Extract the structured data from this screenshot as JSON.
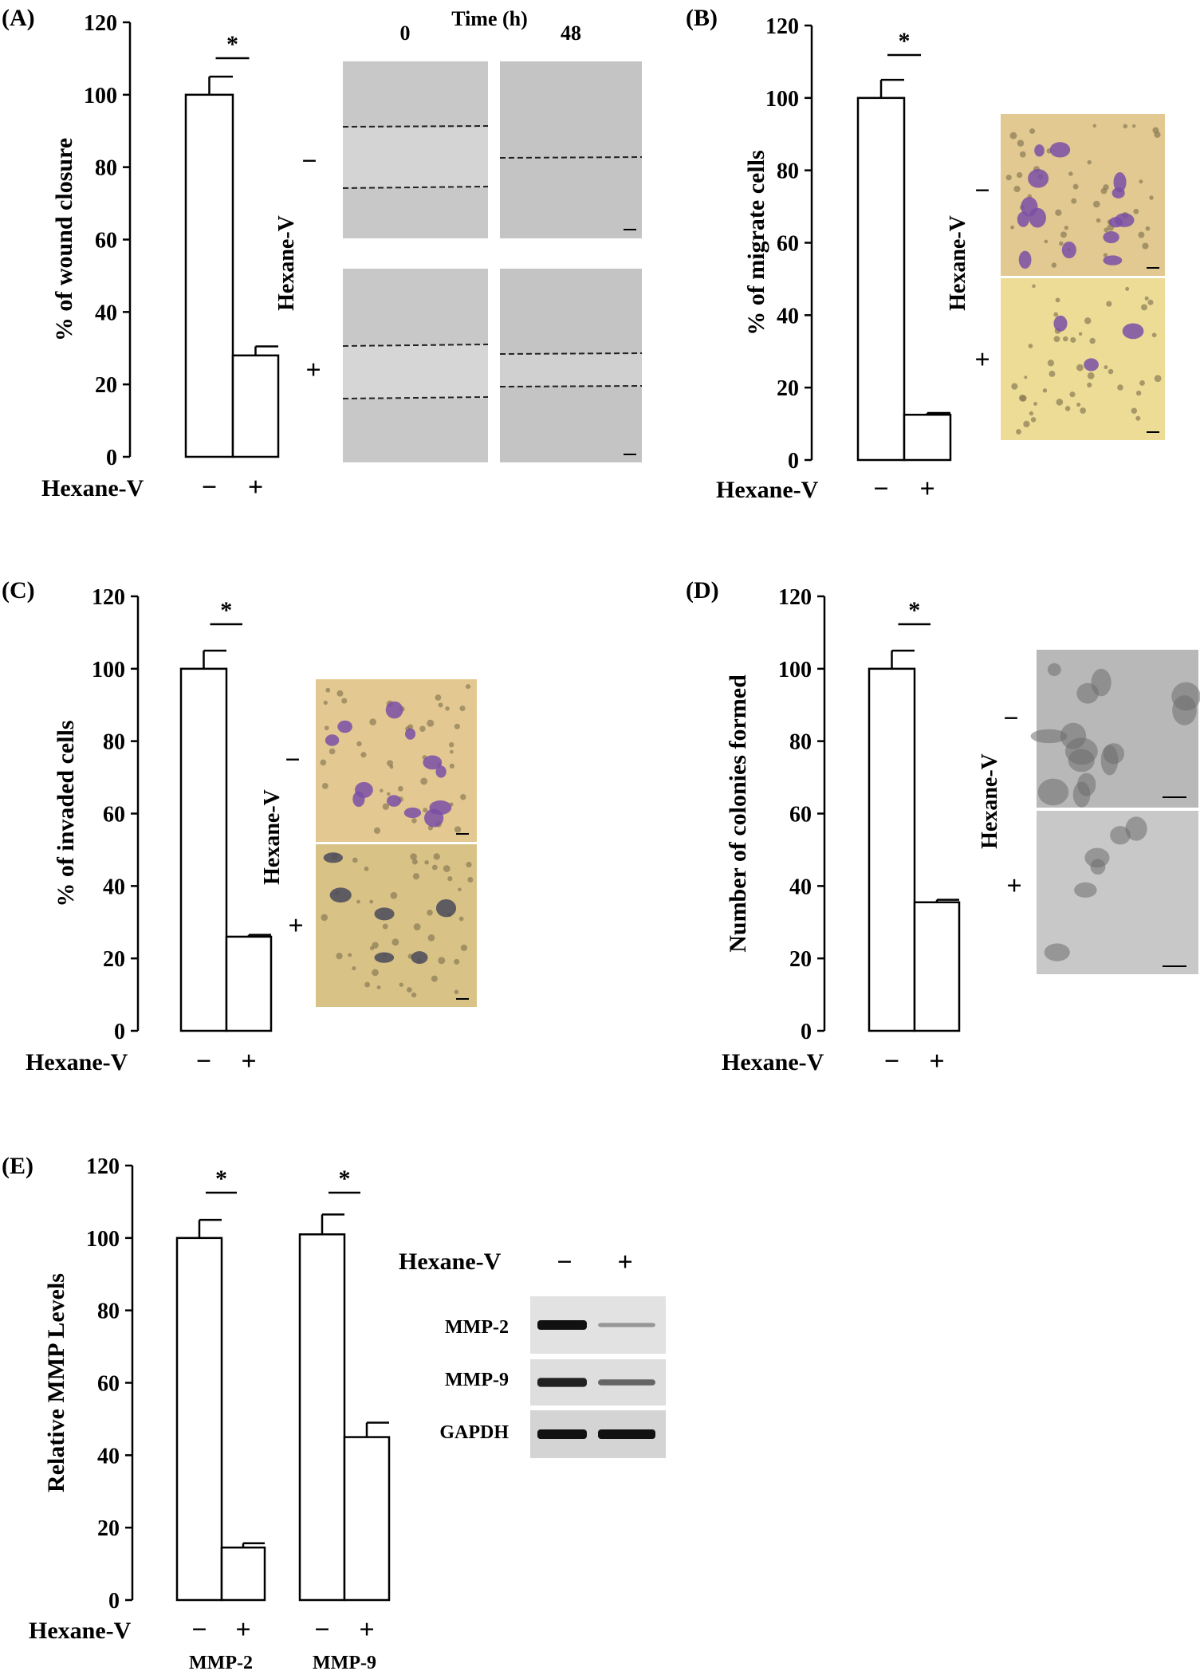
{
  "panels": {
    "A": {
      "label": "(A)",
      "time_label": "Time (h)",
      "time_points": [
        "0",
        "48"
      ],
      "treatment_label": "Hexane-V",
      "row_signs": [
        "−",
        "+"
      ]
    },
    "B": {
      "label": "(B)",
      "treatment_label": "Hexane-V",
      "row_signs": [
        "−",
        "+"
      ]
    },
    "C": {
      "label": "(C)",
      "treatment_label": "Hexane-V",
      "row_signs": [
        "−",
        "+"
      ]
    },
    "D": {
      "label": "(D)",
      "treatment_label": "Hexane-V",
      "row_signs": [
        "−",
        "+"
      ]
    },
    "E": {
      "label": "(E)",
      "blot_header": "Hexane-V",
      "blot_signs": [
        "−",
        "+"
      ],
      "blot_rows": [
        {
          "name": "MMP-2",
          "band_intensity": [
            1.0,
            0.15
          ]
        },
        {
          "name": "MMP-9",
          "band_intensity": [
            0.9,
            0.45
          ]
        },
        {
          "name": "GAPDH",
          "band_intensity": [
            1.0,
            1.0
          ]
        }
      ]
    }
  },
  "colors": {
    "bar_fill": "#ffffff",
    "stroke": "#000000",
    "micro_A": "#c4c4c4",
    "micro_BC": "#e4c68a",
    "micro_D": "#b4b4b4",
    "stain": "#7a4fa6"
  },
  "chart_data": [
    {
      "type": "bar",
      "panel": "A",
      "categories": [
        "−",
        "+"
      ],
      "values": [
        100,
        28
      ],
      "errors": [
        5,
        2.5
      ],
      "xlabel": "Hexane-V",
      "ylabel": "% of wound closure",
      "ylim": [
        0,
        120
      ],
      "yticks": [
        0,
        20,
        40,
        60,
        80,
        100,
        120
      ],
      "significance": [
        {
          "between": [
            0,
            1
          ],
          "label": "*"
        }
      ]
    },
    {
      "type": "bar",
      "panel": "B",
      "categories": [
        "−",
        "+"
      ],
      "values": [
        100,
        12.5
      ],
      "errors": [
        5,
        0.5
      ],
      "xlabel": "Hexane-V",
      "ylabel": "% of migrate cells",
      "ylim": [
        0,
        120
      ],
      "yticks": [
        0,
        20,
        40,
        60,
        80,
        100,
        120
      ],
      "significance": [
        {
          "between": [
            0,
            1
          ],
          "label": "*"
        }
      ]
    },
    {
      "type": "bar",
      "panel": "C",
      "categories": [
        "−",
        "+"
      ],
      "values": [
        100,
        26
      ],
      "errors": [
        5,
        0.5
      ],
      "xlabel": "Hexane-V",
      "ylabel": "% of invaded cells",
      "ylim": [
        0,
        120
      ],
      "yticks": [
        0,
        20,
        40,
        60,
        80,
        100,
        120
      ],
      "significance": [
        {
          "between": [
            0,
            1
          ],
          "label": "*"
        }
      ]
    },
    {
      "type": "bar",
      "panel": "D",
      "categories": [
        "−",
        "+"
      ],
      "values": [
        100,
        35.5
      ],
      "errors": [
        5,
        0.7
      ],
      "xlabel": "Hexane-V",
      "ylabel": "Number of colonies formed",
      "ylim": [
        0,
        120
      ],
      "yticks": [
        0,
        20,
        40,
        60,
        80,
        100,
        120
      ],
      "significance": [
        {
          "between": [
            0,
            1
          ],
          "label": "*"
        }
      ]
    },
    {
      "type": "bar",
      "panel": "E",
      "categories": [
        "−",
        "+",
        "−",
        "+"
      ],
      "groups": [
        "MMP-2",
        "MMP-9"
      ],
      "values": [
        100,
        14.5,
        101,
        45
      ],
      "errors": [
        5,
        1.2,
        5.5,
        4
      ],
      "xlabel": "Hexane-V",
      "ylabel": "Relative  MMP  Levels",
      "ylim": [
        0,
        120
      ],
      "yticks": [
        0,
        20,
        40,
        60,
        80,
        100,
        120
      ],
      "significance": [
        {
          "between": [
            0,
            1
          ],
          "label": "*"
        },
        {
          "between": [
            2,
            3
          ],
          "label": "*"
        }
      ]
    }
  ]
}
